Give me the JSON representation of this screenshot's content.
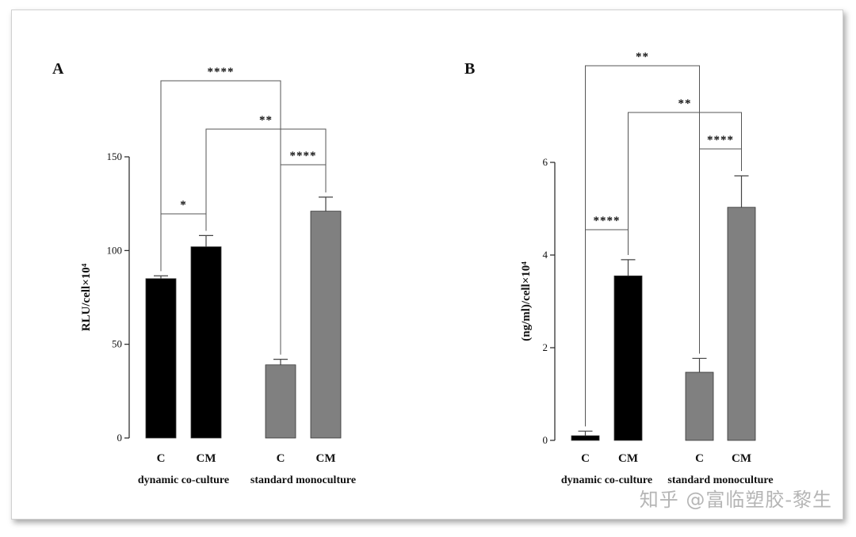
{
  "chart_data": [
    {
      "panel": "A",
      "type": "bar",
      "ylabel": "RLU/cell×10⁴",
      "ylim": [
        0,
        150
      ],
      "yticks": [
        0,
        50,
        100,
        150
      ],
      "groups": [
        {
          "name": "dynamic co-culture",
          "color": "#000000",
          "bars": [
            {
              "category": "C",
              "value": 85,
              "error": 1.5
            },
            {
              "category": "CM",
              "value": 102,
              "error": 6
            }
          ]
        },
        {
          "name": "standard monoculture",
          "color": "#808080",
          "bars": [
            {
              "category": "C",
              "value": 39,
              "error": 3
            },
            {
              "category": "CM",
              "value": 121,
              "error": 7.5
            }
          ]
        }
      ],
      "significance": [
        {
          "from": [
            0,
            0
          ],
          "to": [
            0,
            1
          ],
          "label": "*"
        },
        {
          "from": [
            1,
            0
          ],
          "to": [
            1,
            1
          ],
          "label": "****"
        },
        {
          "from": [
            0,
            1
          ],
          "to": [
            1,
            1
          ],
          "label": "**"
        },
        {
          "from": [
            0,
            0
          ],
          "to": [
            1,
            0
          ],
          "label": "****"
        }
      ]
    },
    {
      "panel": "B",
      "type": "bar",
      "ylabel": "(ng/ml)/cell×10⁴",
      "ylim": [
        0,
        6
      ],
      "yticks": [
        0,
        2,
        4,
        6
      ],
      "groups": [
        {
          "name": "dynamic co-culture",
          "color": "#000000",
          "bars": [
            {
              "category": "C",
              "value": 0.1,
              "error": 0.1
            },
            {
              "category": "CM",
              "value": 3.55,
              "error": 0.35
            }
          ]
        },
        {
          "name": "standard monoculture",
          "color": "#808080",
          "bars": [
            {
              "category": "C",
              "value": 1.47,
              "error": 0.3
            },
            {
              "category": "CM",
              "value": 5.03,
              "error": 0.68
            }
          ]
        }
      ],
      "significance": [
        {
          "from": [
            0,
            0
          ],
          "to": [
            0,
            1
          ],
          "label": "****"
        },
        {
          "from": [
            1,
            0
          ],
          "to": [
            1,
            1
          ],
          "label": "****"
        },
        {
          "from": [
            0,
            1
          ],
          "to": [
            1,
            1
          ],
          "label": "**"
        },
        {
          "from": [
            0,
            0
          ],
          "to": [
            1,
            0
          ],
          "label": "**"
        }
      ]
    }
  ],
  "watermark": "知乎 @富临塑胶-黎生"
}
